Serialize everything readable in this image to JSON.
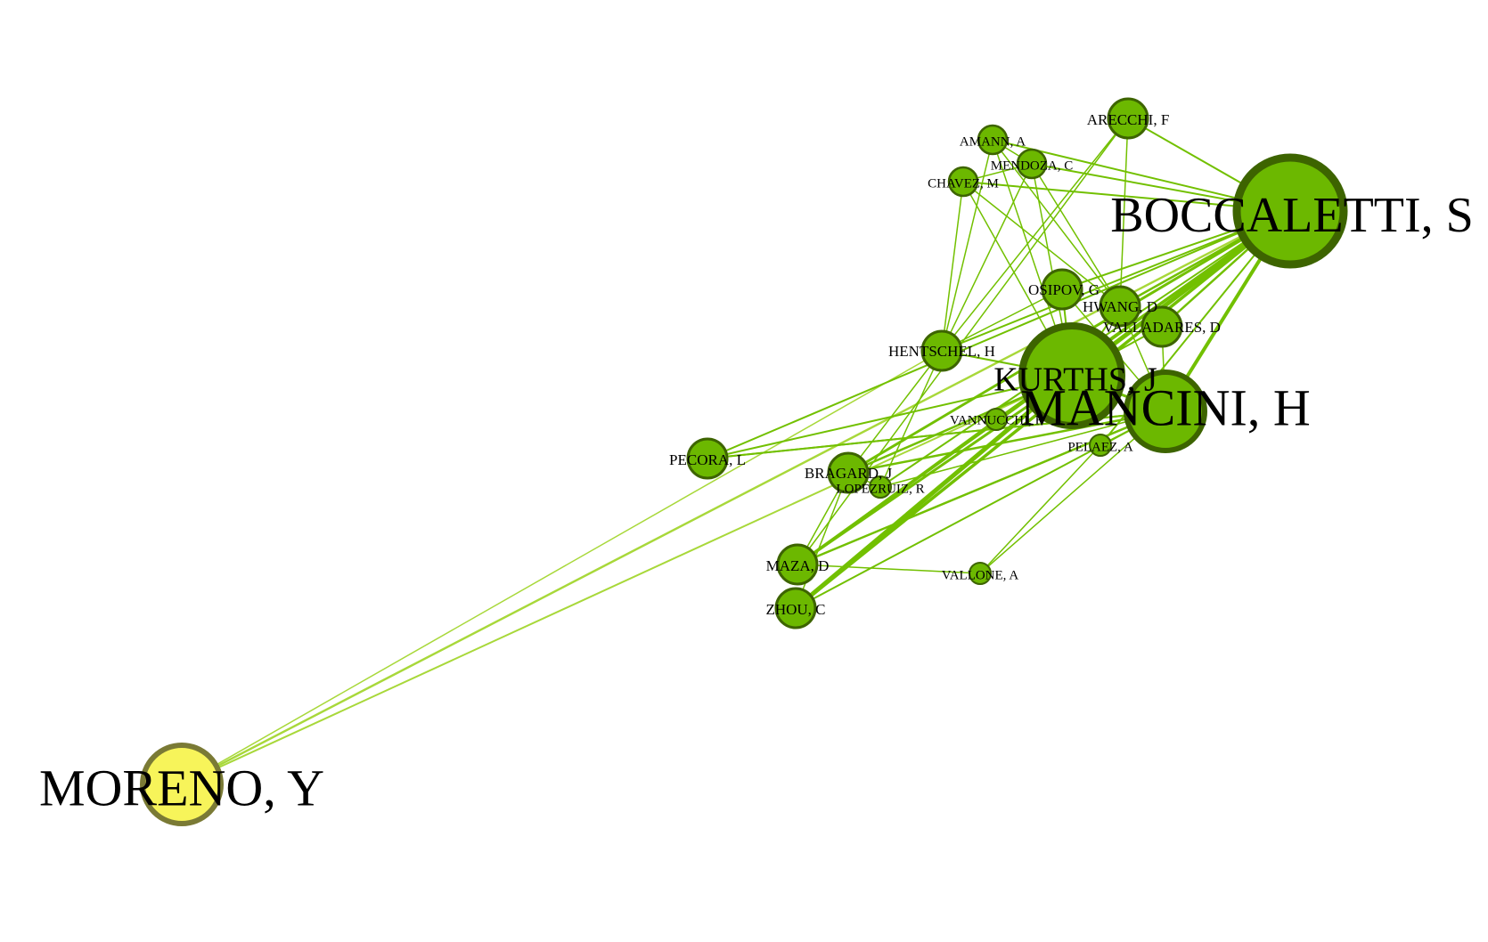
{
  "colors": {
    "background": "#ffffff",
    "node_fill": "#6cb800",
    "node_stroke": "#3d6400",
    "edge": "#72c000",
    "edge_light": "#a8d83a",
    "highlight_fill": "#f7f45a",
    "highlight_stroke": "#7a7a35"
  },
  "nodes": [
    {
      "id": "boccaletti",
      "label": "BOCCALETTI, S",
      "size": "xl"
    },
    {
      "id": "kurths",
      "label": "KURTHS, J",
      "size": "lg"
    },
    {
      "id": "moreno",
      "label": "MORENO, Y",
      "size": "md",
      "highlighted": true
    },
    {
      "id": "arecchi",
      "label": "ARECCHI, F",
      "size": "sm"
    },
    {
      "id": "amann",
      "label": "AMANN, A",
      "size": "xs"
    },
    {
      "id": "mendoza",
      "label": "MENDOZA, C",
      "size": "xs"
    },
    {
      "id": "chavez",
      "label": "CHAVEZ, M",
      "size": "xs"
    },
    {
      "id": "osipov",
      "label": "OSIPOV, G",
      "size": "sm"
    },
    {
      "id": "hwang",
      "label": "HWANG, D",
      "size": "sm"
    },
    {
      "id": "valladares",
      "label": "VALLADARES, D",
      "size": "sm"
    },
    {
      "id": "hentschel",
      "label": "HENTSCHEL, H",
      "size": "sm"
    },
    {
      "id": "mancini",
      "label": "MANCINI, H",
      "size": "md"
    },
    {
      "id": "vannucchi",
      "label": "VANNUCCHI, F",
      "size": "xxs"
    },
    {
      "id": "pecora",
      "label": "PECORA, L",
      "size": "sm"
    },
    {
      "id": "pelaez",
      "label": "PELAEZ, A",
      "size": "xxs"
    },
    {
      "id": "bragard",
      "label": "BRAGARD, J",
      "size": "sm"
    },
    {
      "id": "lopezruiz",
      "label": "LOPEZRUIZ, R",
      "size": "xxs"
    },
    {
      "id": "maza",
      "label": "MAZA, D",
      "size": "sm"
    },
    {
      "id": "vallone",
      "label": "VALLONE, A",
      "size": "xxs"
    },
    {
      "id": "zhou",
      "label": "ZHOU, C",
      "size": "sm"
    }
  ],
  "edges": [
    [
      "moreno",
      "boccaletti",
      2.5,
      "light"
    ],
    [
      "moreno",
      "kurths",
      2,
      "light"
    ],
    [
      "moreno",
      "hentschel",
      1.5,
      "light"
    ],
    [
      "boccaletti",
      "kurths",
      5
    ],
    [
      "boccaletti",
      "arecchi",
      2
    ],
    [
      "boccaletti",
      "amann",
      2
    ],
    [
      "boccaletti",
      "mendoza",
      2
    ],
    [
      "boccaletti",
      "chavez",
      2
    ],
    [
      "boccaletti",
      "osipov",
      2
    ],
    [
      "boccaletti",
      "hwang",
      2.5
    ],
    [
      "boccaletti",
      "valladares",
      2.5
    ],
    [
      "boccaletti",
      "hentschel",
      2
    ],
    [
      "boccaletti",
      "mancini",
      4
    ],
    [
      "boccaletti",
      "pecora",
      2
    ],
    [
      "boccaletti",
      "bragard",
      3
    ],
    [
      "boccaletti",
      "lopezruiz",
      2
    ],
    [
      "boccaletti",
      "maza",
      3
    ],
    [
      "boccaletti",
      "zhou",
      3.5
    ],
    [
      "boccaletti",
      "pelaez",
      2
    ],
    [
      "boccaletti",
      "vannucchi",
      2
    ],
    [
      "kurths",
      "osipov",
      2
    ],
    [
      "kurths",
      "hwang",
      2
    ],
    [
      "kurths",
      "valladares",
      2
    ],
    [
      "kurths",
      "hentschel",
      2
    ],
    [
      "kurths",
      "mancini",
      3
    ],
    [
      "kurths",
      "pecora",
      2
    ],
    [
      "kurths",
      "bragard",
      2.5
    ],
    [
      "kurths",
      "maza",
      3
    ],
    [
      "kurths",
      "zhou",
      5
    ],
    [
      "kurths",
      "chavez",
      1.5
    ],
    [
      "kurths",
      "mendoza",
      1.5
    ],
    [
      "kurths",
      "amann",
      1.5
    ],
    [
      "hentschel",
      "amann",
      1.5
    ],
    [
      "hentschel",
      "chavez",
      1.5
    ],
    [
      "hentschel",
      "mendoza",
      1.5
    ],
    [
      "hentschel",
      "arecchi",
      1.5
    ],
    [
      "hentschel",
      "osipov",
      1.5
    ],
    [
      "hentschel",
      "bragard",
      1.5
    ],
    [
      "hentschel",
      "lopezruiz",
      1.5
    ],
    [
      "mancini",
      "bragard",
      2.5
    ],
    [
      "mancini",
      "pecora",
      2
    ],
    [
      "mancini",
      "maza",
      2.5
    ],
    [
      "mancini",
      "zhou",
      2
    ],
    [
      "mancini",
      "pelaez",
      1.5
    ],
    [
      "mancini",
      "vallone",
      1.5
    ],
    [
      "mancini",
      "lopezruiz",
      1.5
    ],
    [
      "mancini",
      "valladares",
      1.5
    ],
    [
      "mancini",
      "hwang",
      1.5
    ],
    [
      "pecora",
      "mancini",
      2
    ],
    [
      "maza",
      "vallone",
      1.5
    ],
    [
      "maza",
      "bragard",
      1.5
    ],
    [
      "zhou",
      "bragard",
      1.5
    ],
    [
      "bragard",
      "lopezruiz",
      1.5
    ],
    [
      "arecchi",
      "hwang",
      1.5
    ],
    [
      "arecchi",
      "maza",
      1.5
    ],
    [
      "amann",
      "mendoza",
      1.5
    ],
    [
      "chavez",
      "mendoza",
      1.5
    ],
    [
      "chavez",
      "hwang",
      1.5
    ],
    [
      "mendoza",
      "hwang",
      1.5
    ],
    [
      "amann",
      "hwang",
      1.5
    ],
    [
      "vannucchi",
      "maza",
      1.5
    ],
    [
      "pelaez",
      "vallone",
      1.5
    ],
    [
      "osipov",
      "mancini",
      1.5
    ]
  ]
}
